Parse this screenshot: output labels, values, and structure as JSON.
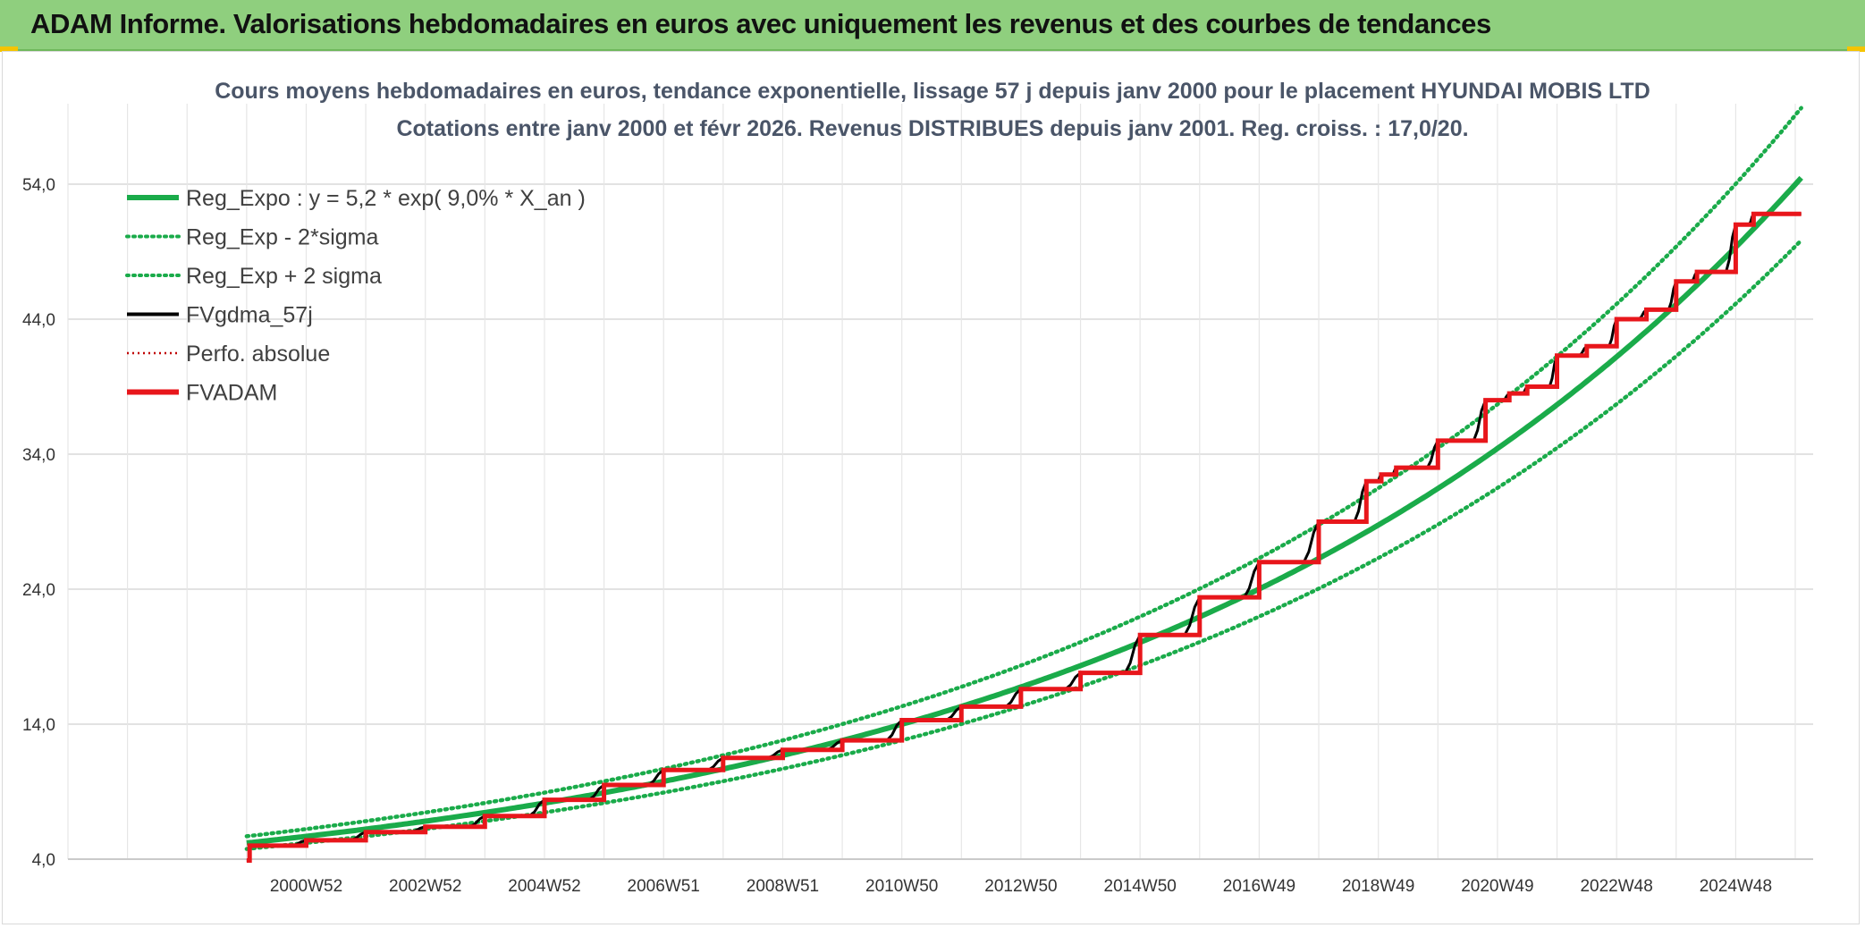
{
  "banner": {
    "title": "ADAM Informe. Valorisations hebdomadaires en euros avec uniquement les revenus et des courbes de tendances"
  },
  "colors": {
    "banner_bg": "#8fcf7e",
    "reg_expo": "#1aab4a",
    "fvgdma": "#000000",
    "fvadam": "#e8161b",
    "perfo": "#c00000",
    "grid": "#d9d9d9"
  },
  "chart_data": {
    "type": "line",
    "title": "Cours moyens hebdomadaires en euros, tendance exponentielle, lissage 57 j depuis janv 2000 pour le placement HYUNDAI MOBIS LTD",
    "subtitle": "Cotations entre janv 2000 et févr 2026. Revenus DISTRIBUES depuis janv 2001. Reg. croiss. : 17,0/20.",
    "xlabel": "",
    "ylabel": "",
    "ylim": [
      4,
      54
    ],
    "xlim_years": [
      1997,
      2026.3
    ],
    "yticks": [
      "4,0",
      "14,0",
      "24,0",
      "34,0",
      "44,0",
      "54,0"
    ],
    "xticks": [
      "2000W52",
      "2002W52",
      "2004W52",
      "2006W51",
      "2008W51",
      "2010W50",
      "2012W50",
      "2014W50",
      "2016W49",
      "2018W49",
      "2020W49",
      "2022W48",
      "2024W48"
    ],
    "xtick_years": [
      2001,
      2003,
      2005,
      2007,
      2009,
      2011,
      2013,
      2015,
      2017,
      2019,
      2021,
      2023,
      2025
    ],
    "grid": true,
    "legend_position": "top-left",
    "legend": [
      {
        "key": "reg_expo",
        "label": "Reg_Expo : y = 5,2 * exp( 9,0% *  X_an )",
        "style": "solid-thick",
        "color": "#1aab4a"
      },
      {
        "key": "reg_minus",
        "label": "Reg_Exp - 2*sigma",
        "style": "dotted",
        "color": "#1aab4a"
      },
      {
        "key": "reg_plus",
        "label": "Reg_Exp + 2 sigma",
        "style": "dotted",
        "color": "#1aab4a"
      },
      {
        "key": "fvgdma",
        "label": "FVgdma_57j",
        "style": "solid",
        "color": "#000000"
      },
      {
        "key": "perfo",
        "label": "Perfo. absolue",
        "style": "dotted-thin",
        "color": "#c00000"
      },
      {
        "key": "fvadam",
        "label": "FVADAM",
        "style": "solid-thick",
        "color": "#e8161b"
      }
    ],
    "series": {
      "reg_expo": {
        "a": 5.2,
        "rate": 0.09,
        "start_year": 2000,
        "end_year": 2026.1
      },
      "band_factor_minus": 0.915,
      "band_factor_plus": 1.095,
      "fvadam_steps": [
        {
          "year": 2000.0,
          "value": 3.9
        },
        {
          "year": 2000.05,
          "value": 5.0
        },
        {
          "year": 2001.0,
          "value": 5.4
        },
        {
          "year": 2002.0,
          "value": 6.0
        },
        {
          "year": 2003.0,
          "value": 6.4
        },
        {
          "year": 2004.0,
          "value": 7.2
        },
        {
          "year": 2005.0,
          "value": 8.4
        },
        {
          "year": 2006.0,
          "value": 9.5
        },
        {
          "year": 2007.0,
          "value": 10.6
        },
        {
          "year": 2008.0,
          "value": 11.5
        },
        {
          "year": 2009.0,
          "value": 12.1
        },
        {
          "year": 2010.0,
          "value": 12.8
        },
        {
          "year": 2011.0,
          "value": 14.3
        },
        {
          "year": 2012.0,
          "value": 15.3
        },
        {
          "year": 2013.0,
          "value": 16.6
        },
        {
          "year": 2014.0,
          "value": 17.8
        },
        {
          "year": 2015.0,
          "value": 20.6
        },
        {
          "year": 2016.0,
          "value": 23.4
        },
        {
          "year": 2017.0,
          "value": 26.0
        },
        {
          "year": 2018.0,
          "value": 29.0
        },
        {
          "year": 2018.8,
          "value": 32.0
        },
        {
          "year": 2019.05,
          "value": 32.5
        },
        {
          "year": 2019.3,
          "value": 33.0
        },
        {
          "year": 2020.0,
          "value": 35.0
        },
        {
          "year": 2020.8,
          "value": 38.0
        },
        {
          "year": 2021.2,
          "value": 38.5
        },
        {
          "year": 2021.5,
          "value": 39.0
        },
        {
          "year": 2022.0,
          "value": 41.3
        },
        {
          "year": 2022.5,
          "value": 42.0
        },
        {
          "year": 2023.0,
          "value": 44.0
        },
        {
          "year": 2023.5,
          "value": 44.7
        },
        {
          "year": 2024.0,
          "value": 46.8
        },
        {
          "year": 2024.35,
          "value": 47.5
        },
        {
          "year": 2025.0,
          "value": 51.0
        },
        {
          "year": 2025.3,
          "value": 51.8
        },
        {
          "year": 2026.1,
          "value": 51.8
        }
      ]
    }
  }
}
